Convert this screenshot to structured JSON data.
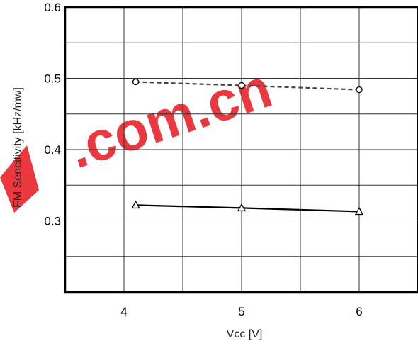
{
  "chart_data": {
    "type": "line",
    "title": "",
    "xlabel": "Vcc [V]",
    "ylabel": "FM Sencitivity [kHz/mw]",
    "xlim": [
      3.5,
      6.5
    ],
    "ylim": [
      0.2,
      0.6
    ],
    "x_ticks": [
      "4",
      "5",
      "6"
    ],
    "x_tick_values": [
      4,
      5,
      6
    ],
    "y_ticks": [
      "0.3",
      "0.4",
      "0.5",
      "0.6"
    ],
    "y_tick_values": [
      0.3,
      0.4,
      0.5,
      0.6
    ],
    "grid": true,
    "series": [
      {
        "marker": "circle",
        "line_style": "dashed",
        "color": "#444444",
        "points": [
          [
            4.1,
            0.495
          ],
          [
            5.0,
            0.49
          ],
          [
            6.0,
            0.484
          ]
        ]
      },
      {
        "marker": "triangle",
        "line_style": "solid",
        "color": "#000000",
        "points": [
          [
            4.1,
            0.322
          ],
          [
            5.0,
            0.318
          ],
          [
            6.0,
            0.313
          ]
        ]
      }
    ]
  },
  "watermark": {
    "text": ".com.cn",
    "color": "#e8232a"
  }
}
